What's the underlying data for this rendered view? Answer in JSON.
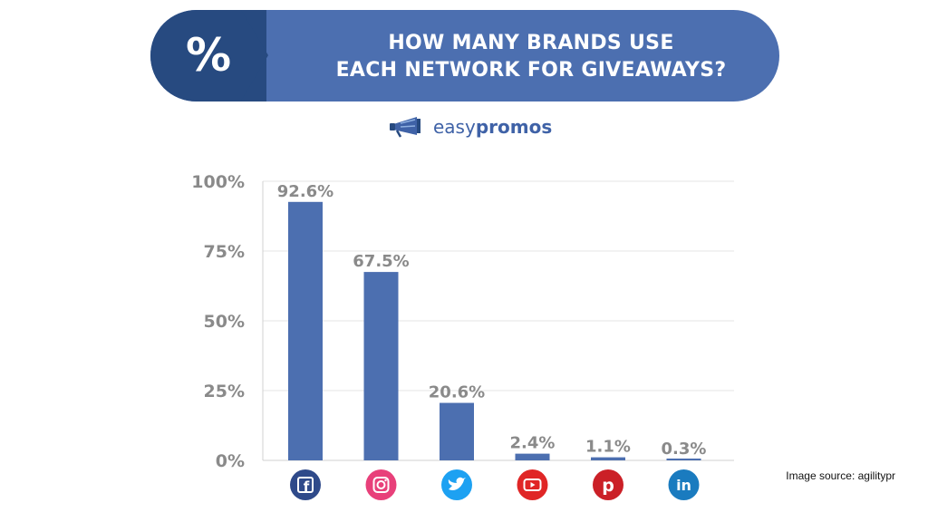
{
  "header": {
    "percent_symbol": "%",
    "title_line1": "HOW MANY BRANDS USE",
    "title_line2": "EACH NETWORK FOR GIVEAWAYS?"
  },
  "logo": {
    "text_light": "easy",
    "text_bold": "promos"
  },
  "colors": {
    "banner": "#4c6fb0",
    "banner_dark": "#274a80",
    "bar": "#4c6fb0",
    "axis_text": "#8a8a8a",
    "grid": "#e6e6e6",
    "facebook": "#2f4a8a",
    "instagram": "#e8407a",
    "twitter": "#1da1f2",
    "youtube": "#e02626",
    "pinterest": "#cb2027",
    "linkedin": "#1a7bbf"
  },
  "chart_data": {
    "type": "bar",
    "categories": [
      "Facebook",
      "Instagram",
      "Twitter",
      "YouTube",
      "Pinterest",
      "LinkedIn"
    ],
    "category_icons": [
      "facebook-icon",
      "instagram-icon",
      "twitter-icon",
      "youtube-icon",
      "pinterest-icon",
      "linkedin-icon"
    ],
    "values": [
      92.6,
      67.5,
      20.6,
      2.4,
      1.1,
      0.3
    ],
    "value_labels": [
      "92.6%",
      "67.5%",
      "20.6%",
      "2.4%",
      "1.1%",
      "0.3%"
    ],
    "y_ticks": [
      "0%",
      "25%",
      "50%",
      "75%",
      "100%"
    ],
    "y_tick_values": [
      0,
      25,
      50,
      75,
      100
    ],
    "ylim": [
      0,
      100
    ],
    "grid": true
  },
  "footer": {
    "source": "Image source: agilitypr"
  }
}
